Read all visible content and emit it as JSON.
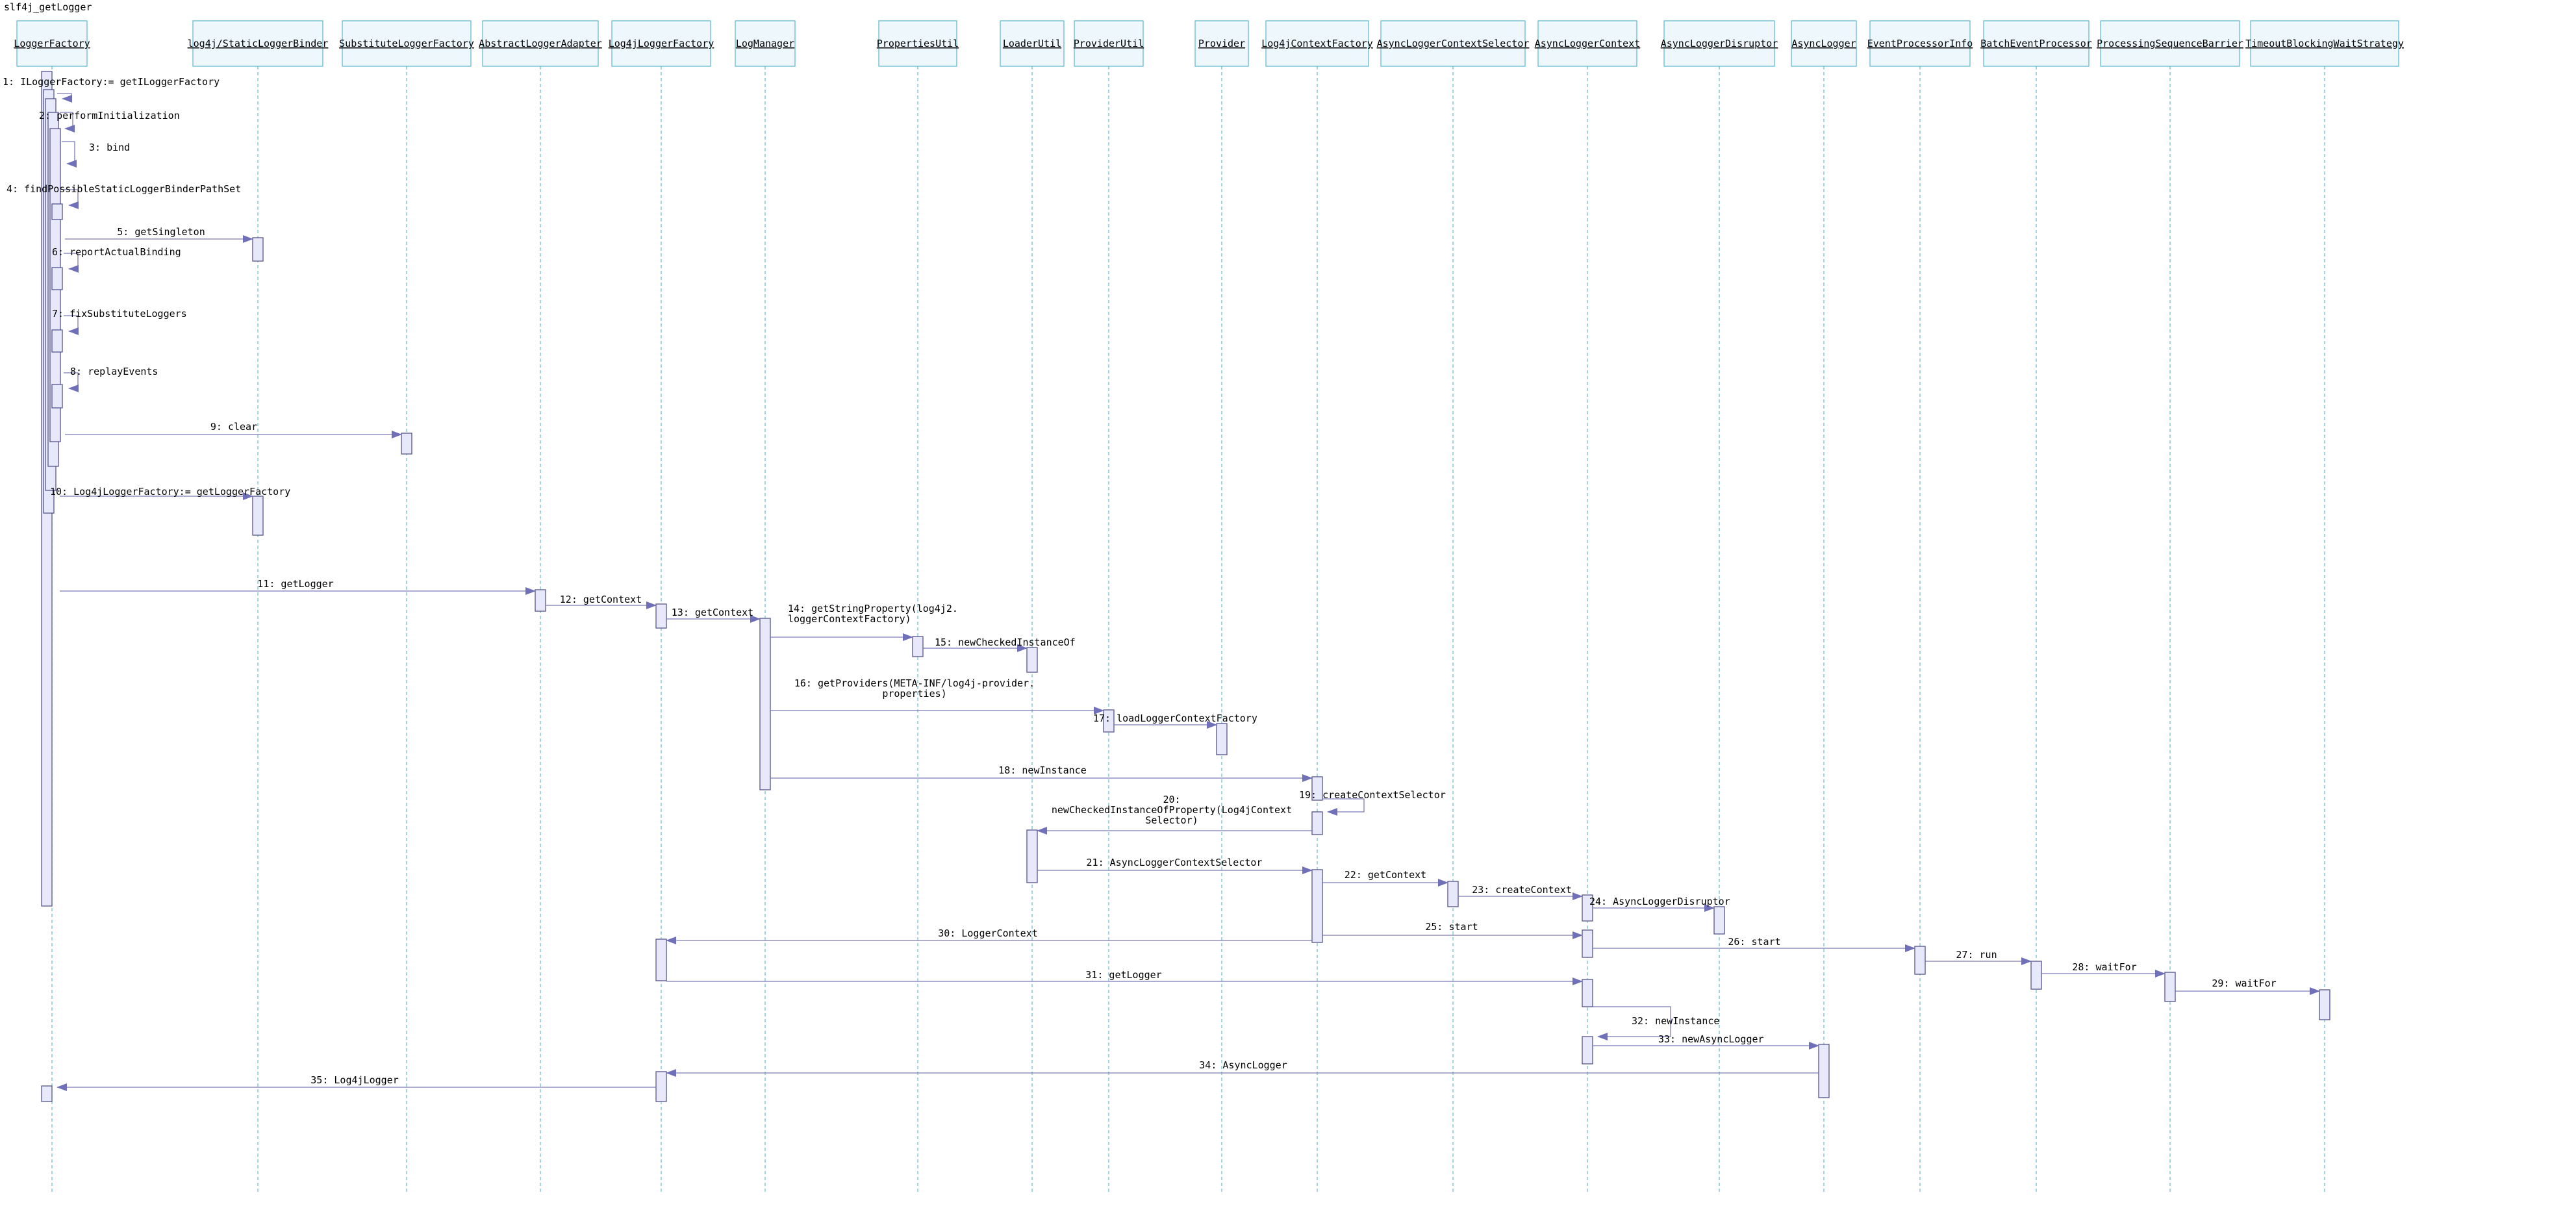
{
  "diagram": {
    "title": "slf4j_getLogger",
    "lifelines": [
      "LoggerFactory",
      "log4j/StaticLoggerBinder",
      "SubstituteLoggerFactory",
      "AbstractLoggerAdapter",
      "Log4jLoggerFactory",
      "LogManager",
      "PropertiesUtil",
      "LoaderUtil",
      "ProviderUtil",
      "Provider",
      "Log4jContextFactory",
      "AsyncLoggerContextSelector",
      "AsyncLoggerContext",
      "AsyncLoggerDisruptor",
      "AsyncLogger",
      "EventProcessorInfo",
      "BatchEventProcessor",
      "ProcessingSequenceBarrier",
      "TimeoutBlockingWaitStrategy"
    ],
    "messages": [
      {
        "n": 1,
        "label": "ILoggerFactory:= getILoggerFactory",
        "from": "LoggerFactory",
        "to": "LoggerFactory"
      },
      {
        "n": 2,
        "label": "performInitialization",
        "from": "LoggerFactory",
        "to": "LoggerFactory"
      },
      {
        "n": 3,
        "label": "bind",
        "from": "LoggerFactory",
        "to": "LoggerFactory"
      },
      {
        "n": 4,
        "label": "findPossibleStaticLoggerBinderPathSet",
        "from": "LoggerFactory",
        "to": "LoggerFactory"
      },
      {
        "n": 5,
        "label": "getSingleton",
        "from": "LoggerFactory",
        "to": "log4j/StaticLoggerBinder"
      },
      {
        "n": 6,
        "label": "reportActualBinding",
        "from": "LoggerFactory",
        "to": "LoggerFactory"
      },
      {
        "n": 7,
        "label": "fixSubstituteLoggers",
        "from": "LoggerFactory",
        "to": "LoggerFactory"
      },
      {
        "n": 8,
        "label": "replayEvents",
        "from": "LoggerFactory",
        "to": "LoggerFactory"
      },
      {
        "n": 9,
        "label": "clear",
        "from": "LoggerFactory",
        "to": "SubstituteLoggerFactory"
      },
      {
        "n": 10,
        "label": "Log4jLoggerFactory:= getLoggerFactory",
        "from": "LoggerFactory",
        "to": "log4j/StaticLoggerBinder"
      },
      {
        "n": 11,
        "label": "getLogger",
        "from": "LoggerFactory",
        "to": "AbstractLoggerAdapter"
      },
      {
        "n": 12,
        "label": "getContext",
        "from": "AbstractLoggerAdapter",
        "to": "Log4jLoggerFactory"
      },
      {
        "n": 13,
        "label": "getContext",
        "from": "Log4jLoggerFactory",
        "to": "LogManager"
      },
      {
        "n": 14,
        "label": "getStringProperty(log4j2.loggerContextFactory)",
        "from": "LogManager",
        "to": "PropertiesUtil"
      },
      {
        "n": 15,
        "label": "newCheckedInstanceOf",
        "from": "PropertiesUtil",
        "to": "LoaderUtil"
      },
      {
        "n": 16,
        "label": "getProviders(META-INF/log4j-provider.properties)",
        "from": "LogManager",
        "to": "ProviderUtil"
      },
      {
        "n": 17,
        "label": "loadLoggerContextFactory",
        "from": "ProviderUtil",
        "to": "Provider"
      },
      {
        "n": 18,
        "label": "newInstance",
        "from": "LogManager",
        "to": "Log4jContextFactory"
      },
      {
        "n": 19,
        "label": "createContextSelector",
        "from": "Log4jContextFactory",
        "to": "Log4jContextFactory"
      },
      {
        "n": 20,
        "label": "newCheckedInstanceOfProperty(Log4jContextSelector)",
        "from": "Log4jContextFactory",
        "to": "LoaderUtil"
      },
      {
        "n": 21,
        "label": "AsyncLoggerContextSelector",
        "from": "LoaderUtil",
        "to": "Log4jContextFactory"
      },
      {
        "n": 22,
        "label": "getContext",
        "from": "Log4jContextFactory",
        "to": "AsyncLoggerContextSelector"
      },
      {
        "n": 23,
        "label": "createContext",
        "from": "AsyncLoggerContextSelector",
        "to": "AsyncLoggerContext"
      },
      {
        "n": 24,
        "label": "AsyncLoggerDisruptor",
        "from": "AsyncLoggerContext",
        "to": "AsyncLoggerDisruptor"
      },
      {
        "n": 25,
        "label": "start",
        "from": "Log4jContextFactory",
        "to": "AsyncLoggerContext"
      },
      {
        "n": 26,
        "label": "start",
        "from": "AsyncLoggerContext",
        "to": "EventProcessorInfo"
      },
      {
        "n": 27,
        "label": "run",
        "from": "EventProcessorInfo",
        "to": "BatchEventProcessor"
      },
      {
        "n": 28,
        "label": "waitFor",
        "from": "BatchEventProcessor",
        "to": "ProcessingSequenceBarrier"
      },
      {
        "n": 29,
        "label": "waitFor",
        "from": "ProcessingSequenceBarrier",
        "to": "TimeoutBlockingWaitStrategy"
      },
      {
        "n": 30,
        "label": "LoggerContext",
        "from": "Log4jContextFactory",
        "to": "Log4jLoggerFactory"
      },
      {
        "n": 31,
        "label": "getLogger",
        "from": "Log4jLoggerFactory",
        "to": "AsyncLoggerContext"
      },
      {
        "n": 32,
        "label": "newInstance",
        "from": "AsyncLoggerContext",
        "to": "AsyncLoggerContext"
      },
      {
        "n": 33,
        "label": "newAsyncLogger",
        "from": "AsyncLoggerContext",
        "to": "AsyncLogger"
      },
      {
        "n": 34,
        "label": "AsyncLogger",
        "from": "AsyncLogger",
        "to": "Log4jLoggerFactory"
      },
      {
        "n": 35,
        "label": "Log4jLogger",
        "from": "Log4jLoggerFactory",
        "to": "LoggerFactory"
      }
    ]
  }
}
